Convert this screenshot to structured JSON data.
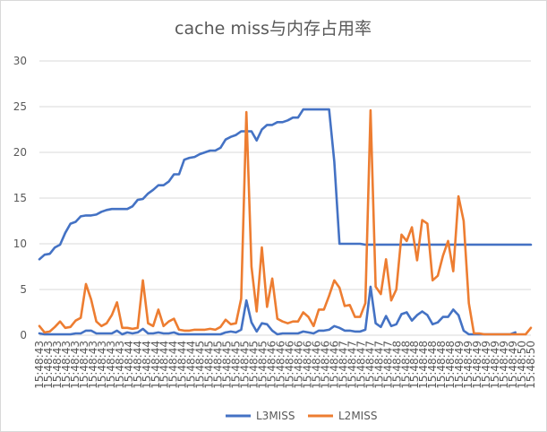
{
  "chart_data": {
    "type": "line",
    "title": "cache miss与内存占用率",
    "xlabel": "",
    "ylabel": "",
    "ylim": [
      0,
      30
    ],
    "yticks": [
      "0",
      "5",
      "10",
      "15",
      "20",
      "25",
      "30"
    ],
    "grid": true,
    "legend_position": "bottom",
    "x": [
      "15:48:43",
      "15:48:43",
      "15:48:43",
      "15:48:43",
      "15:48:43",
      "15:48:43",
      "15:48:43",
      "15:48:43",
      "15:48:43",
      "15:48:43",
      "15:48:43",
      "15:48:43",
      "15:48:43",
      "15:48:44",
      "15:48:44",
      "15:48:44",
      "15:48:44",
      "15:48:44",
      "15:48:44",
      "15:48:44",
      "15:48:44",
      "15:48:44",
      "15:48:44",
      "15:48:44",
      "15:48:45",
      "15:48:45",
      "15:48:45",
      "15:48:45",
      "15:48:45",
      "15:48:45",
      "15:48:45",
      "15:48:45",
      "15:48:45",
      "15:48:45",
      "15:48:46",
      "15:48:46",
      "15:48:46",
      "15:48:46",
      "15:48:46",
      "15:48:46",
      "15:48:46",
      "15:48:46",
      "15:48:46",
      "15:48:46",
      "15:48:46",
      "15:48:47",
      "15:48:47",
      "15:48:47",
      "15:48:47",
      "15:48:47",
      "15:48:47",
      "15:48:47",
      "15:48:48",
      "15:48:48",
      "15:48:48",
      "15:48:48",
      "15:48:48",
      "15:48:48",
      "15:48:48",
      "15:48:48",
      "15:48:48",
      "15:48:48",
      "15:48:49",
      "15:48:49",
      "15:48:49",
      "15:48:49",
      "15:48:49",
      "15:48:49",
      "15:48:49",
      "15:48:49",
      "15:48:50",
      "15:48:50",
      "15:48:50"
    ],
    "series": [
      {
        "name": "L3MISS",
        "color": "#4472C4",
        "values": [
          8.3,
          8.8,
          8.9,
          9.6,
          9.9,
          11.2,
          12.2,
          12.4,
          13.0,
          13.1,
          13.1,
          13.2,
          13.5,
          13.7,
          13.8,
          13.8,
          13.8,
          13.8,
          14.1,
          14.8,
          14.9,
          15.5,
          15.9,
          16.4,
          16.4,
          16.8,
          17.6,
          17.6,
          19.2,
          19.4,
          19.5,
          19.8,
          20.0,
          20.2,
          20.2,
          20.5,
          21.4,
          21.7,
          21.9,
          22.3,
          22.3,
          22.3,
          21.3,
          22.5,
          23.0,
          23.0,
          23.3,
          23.3,
          23.5,
          23.8,
          23.8,
          24.7,
          24.7,
          24.7,
          24.7,
          24.7,
          24.7,
          19.0,
          10.0,
          10.0,
          10.0,
          10.0,
          10.0,
          9.9,
          9.9,
          9.9,
          9.9,
          9.9,
          9.9,
          9.9,
          9.9,
          9.9,
          9.9
        ],
        "values_l3_lower": []
      },
      {
        "name": "L2MISS",
        "color": "#ED7D31",
        "values": [
          1.0,
          0.3,
          0.4,
          0.9,
          1.5,
          0.8,
          0.9,
          1.6,
          1.9,
          5.6,
          3.9,
          1.5,
          1.0,
          1.3,
          2.2,
          3.6,
          0.8,
          0.8,
          0.7,
          0.8,
          6.0,
          1.3,
          1.0,
          2.8,
          1.0,
          1.5,
          1.8,
          0.6,
          0.5,
          0.5,
          0.6,
          0.6,
          0.6,
          0.7,
          0.6,
          0.9,
          1.7,
          1.2,
          1.3,
          4.0,
          24.4,
          7.5,
          2.6,
          9.6,
          3.1,
          6.2,
          1.8,
          1.5,
          1.3,
          1.5,
          1.5,
          2.5,
          2.0,
          1.0,
          2.8,
          2.8,
          4.3,
          6.0,
          5.2,
          3.2,
          3.3,
          2.0,
          2.0,
          3.5,
          24.6,
          5.3,
          4.5,
          8.3,
          3.8,
          5.0,
          11.0,
          10.3,
          11.8
        ]
      }
    ],
    "l2_tail": [
      8.2,
      12.6,
      12.2,
      6.0,
      6.5,
      8.7,
      10.3,
      7.0,
      15.2,
      12.5,
      3.5,
      0.2,
      0.2,
      0.1,
      0.1,
      0.1,
      0.1,
      0.1,
      0.1,
      0.1,
      0.1,
      0.1,
      0.8
    ],
    "l3_small": [
      0.2,
      0.1,
      0.1,
      0.1,
      0.1,
      0.1,
      0.1,
      0.2,
      0.2,
      0.5,
      0.5,
      0.2,
      0.2,
      0.2,
      0.2,
      0.5,
      0.1,
      0.3,
      0.2,
      0.3,
      0.7,
      0.2,
      0.2,
      0.3,
      0.2,
      0.2,
      0.3,
      0.1,
      0.1,
      0.1,
      0.1,
      0.1,
      0.1,
      0.1,
      0.1,
      0.1,
      0.3,
      0.4,
      0.3,
      0.6,
      3.8,
      1.4,
      0.4,
      1.3,
      1.2,
      0.5,
      0.1,
      0.2,
      0.2,
      0.2,
      0.2,
      0.4,
      0.3,
      0.2,
      0.5,
      0.5,
      0.6,
      1.0,
      0.8,
      0.5,
      0.5,
      0.4,
      0.4,
      0.6,
      5.3,
      1.3,
      0.9,
      2.1,
      1.0,
      1.2,
      2.3,
      2.5,
      1.6,
      2.2,
      2.6,
      2.2,
      1.2,
      1.4,
      2.0,
      2.0,
      2.8,
      2.2,
      0.5,
      0.1,
      0.1,
      0.1,
      0.1,
      0.1,
      0.1,
      0.1,
      0.1,
      0.1,
      0.3
    ]
  }
}
